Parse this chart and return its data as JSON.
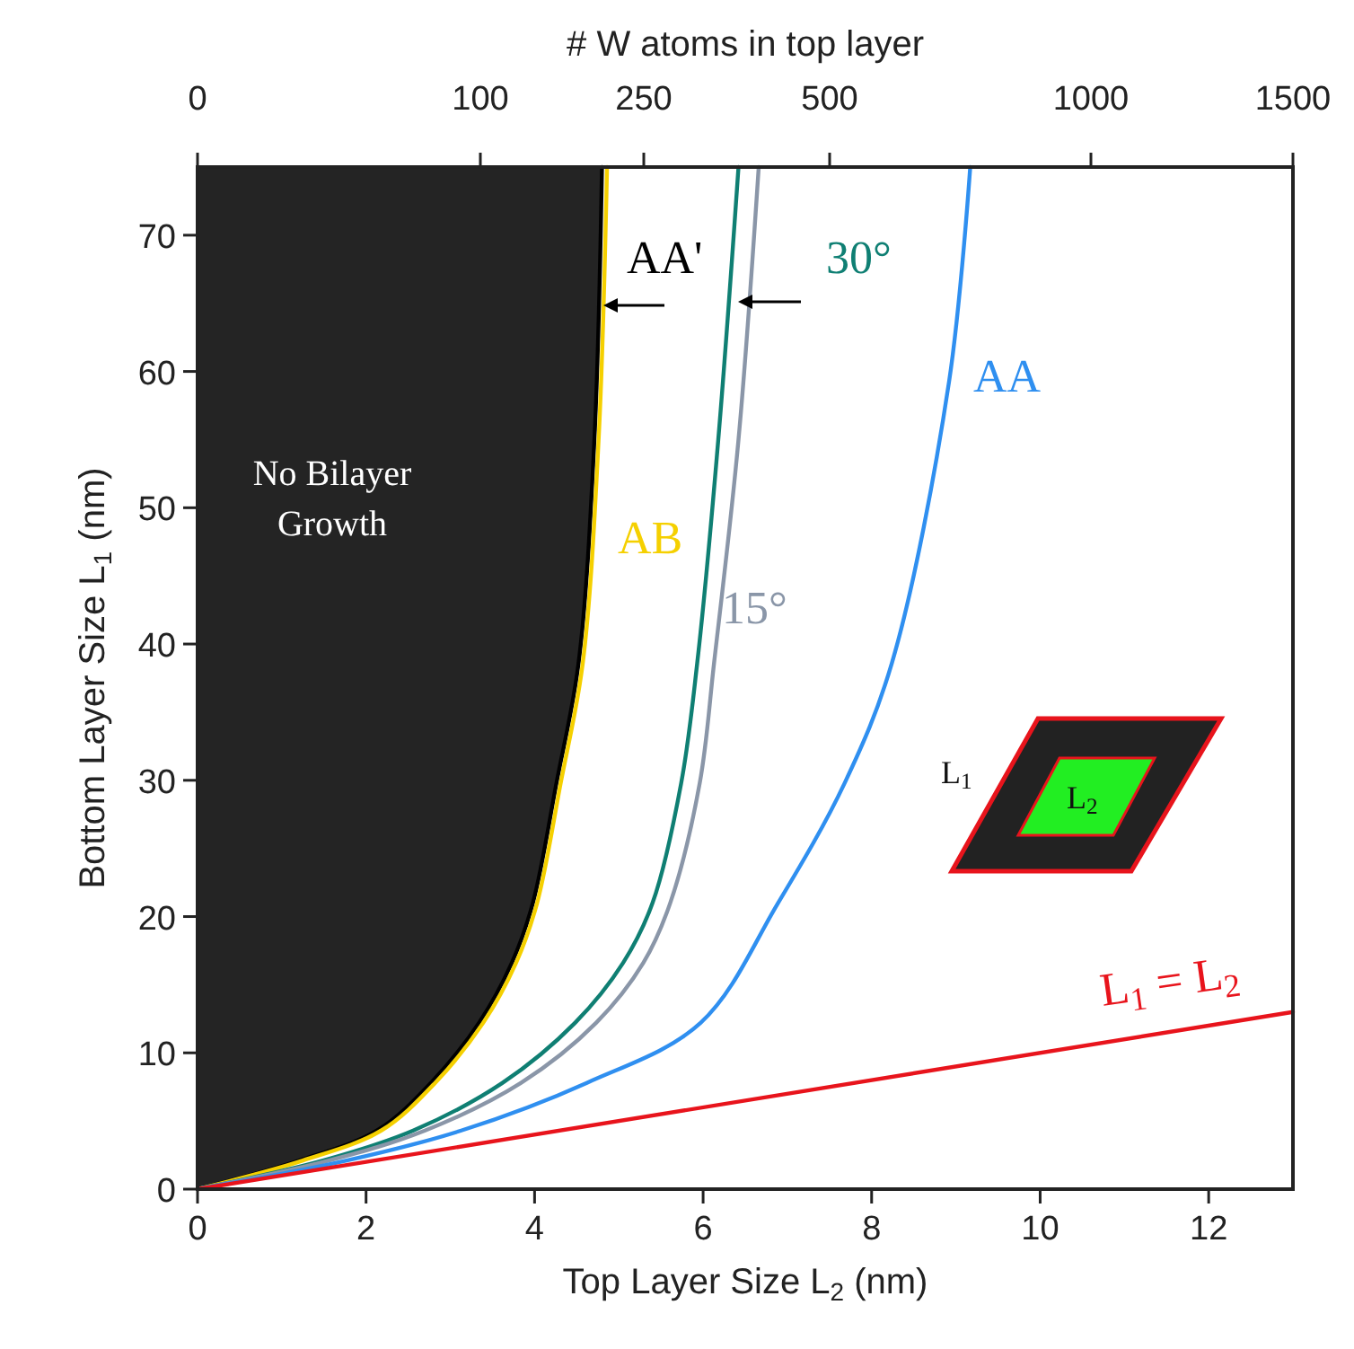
{
  "chart_data": {
    "type": "line",
    "xlabel": "Top Layer Size L$_{2}$ (nm)",
    "ylabel": "Bottom Layer Size L$_{1}$ (nm)",
    "x2label": "# W atoms in top layer",
    "xlim": [
      0,
      13
    ],
    "ylim": [
      0,
      75
    ],
    "xticks": [
      0,
      2,
      4,
      6,
      8,
      10,
      12
    ],
    "yticks": [
      0,
      10,
      20,
      30,
      40,
      50,
      60,
      70
    ],
    "grid": false,
    "legend": false,
    "marker": "none",
    "line_style": "solid",
    "series": [
      {
        "name": "AA'",
        "color": "#000000",
        "x": [
          0,
          1.21,
          2.13,
          2.77,
          3.34,
          3.73,
          3.98,
          4.26,
          4.52,
          4.71,
          4.8
        ],
        "values": [
          0,
          2.1,
          4.3,
          7.8,
          12.2,
          16.6,
          21.0,
          29.8,
          38.5,
          55,
          75
        ],
        "lower": [
          0,
          2.1,
          4.3,
          7.8,
          12.2,
          16.6,
          21.0,
          29.8,
          38.5,
          55,
          75
        ],
        "upper": [
          75,
          75,
          75,
          75,
          75,
          75,
          75,
          75,
          75,
          75,
          75
        ]
      },
      {
        "name": "AB",
        "color": "#f5d000",
        "x": [
          0,
          1.25,
          2.18,
          2.82,
          3.39,
          3.78,
          4.03,
          4.31,
          4.57,
          4.76,
          4.86
        ],
        "values": [
          0,
          2.1,
          4.3,
          7.8,
          12.2,
          16.6,
          21.0,
          29.8,
          38.5,
          55,
          75
        ]
      },
      {
        "name": "30°",
        "color": "#0f7f73",
        "x": [
          0,
          1.49,
          2.56,
          3.62,
          4.48,
          5.05,
          5.4,
          5.74,
          5.93,
          6.18,
          6.42
        ],
        "values": [
          0,
          2.1,
          4.3,
          7.8,
          12.2,
          16.6,
          21.0,
          29.8,
          38.6,
          55,
          75
        ]
      },
      {
        "name": "15°",
        "color": "#8a96a8",
        "x": [
          0,
          1.56,
          2.7,
          3.84,
          4.73,
          5.29,
          5.61,
          5.96,
          6.13,
          6.42,
          6.66
        ],
        "values": [
          0,
          2.1,
          4.3,
          7.8,
          12.2,
          16.6,
          21.0,
          29.8,
          38.6,
          55,
          75
        ]
      },
      {
        "name": "AA",
        "color": "#2f8ff0",
        "x": [
          0,
          1.77,
          3.13,
          4.62,
          5.97,
          6.89,
          7.68,
          8.24,
          8.92,
          9.17
        ],
        "values": [
          0,
          2.1,
          4.3,
          7.8,
          12.2,
          21.0,
          29.8,
          38.6,
          59.3,
          75
        ]
      },
      {
        "name": "L$_{1}$ = L$_{2}$",
        "color": "#e8141c",
        "x": [
          0,
          13
        ],
        "values": [
          0,
          13
        ]
      }
    ],
    "annotations": [
      "No Bilayer Growth",
      "L$_{1}$",
      "L$_{2}$",
      "0",
      "100",
      "250",
      "500",
      "1000",
      "1500"
    ]
  }
}
